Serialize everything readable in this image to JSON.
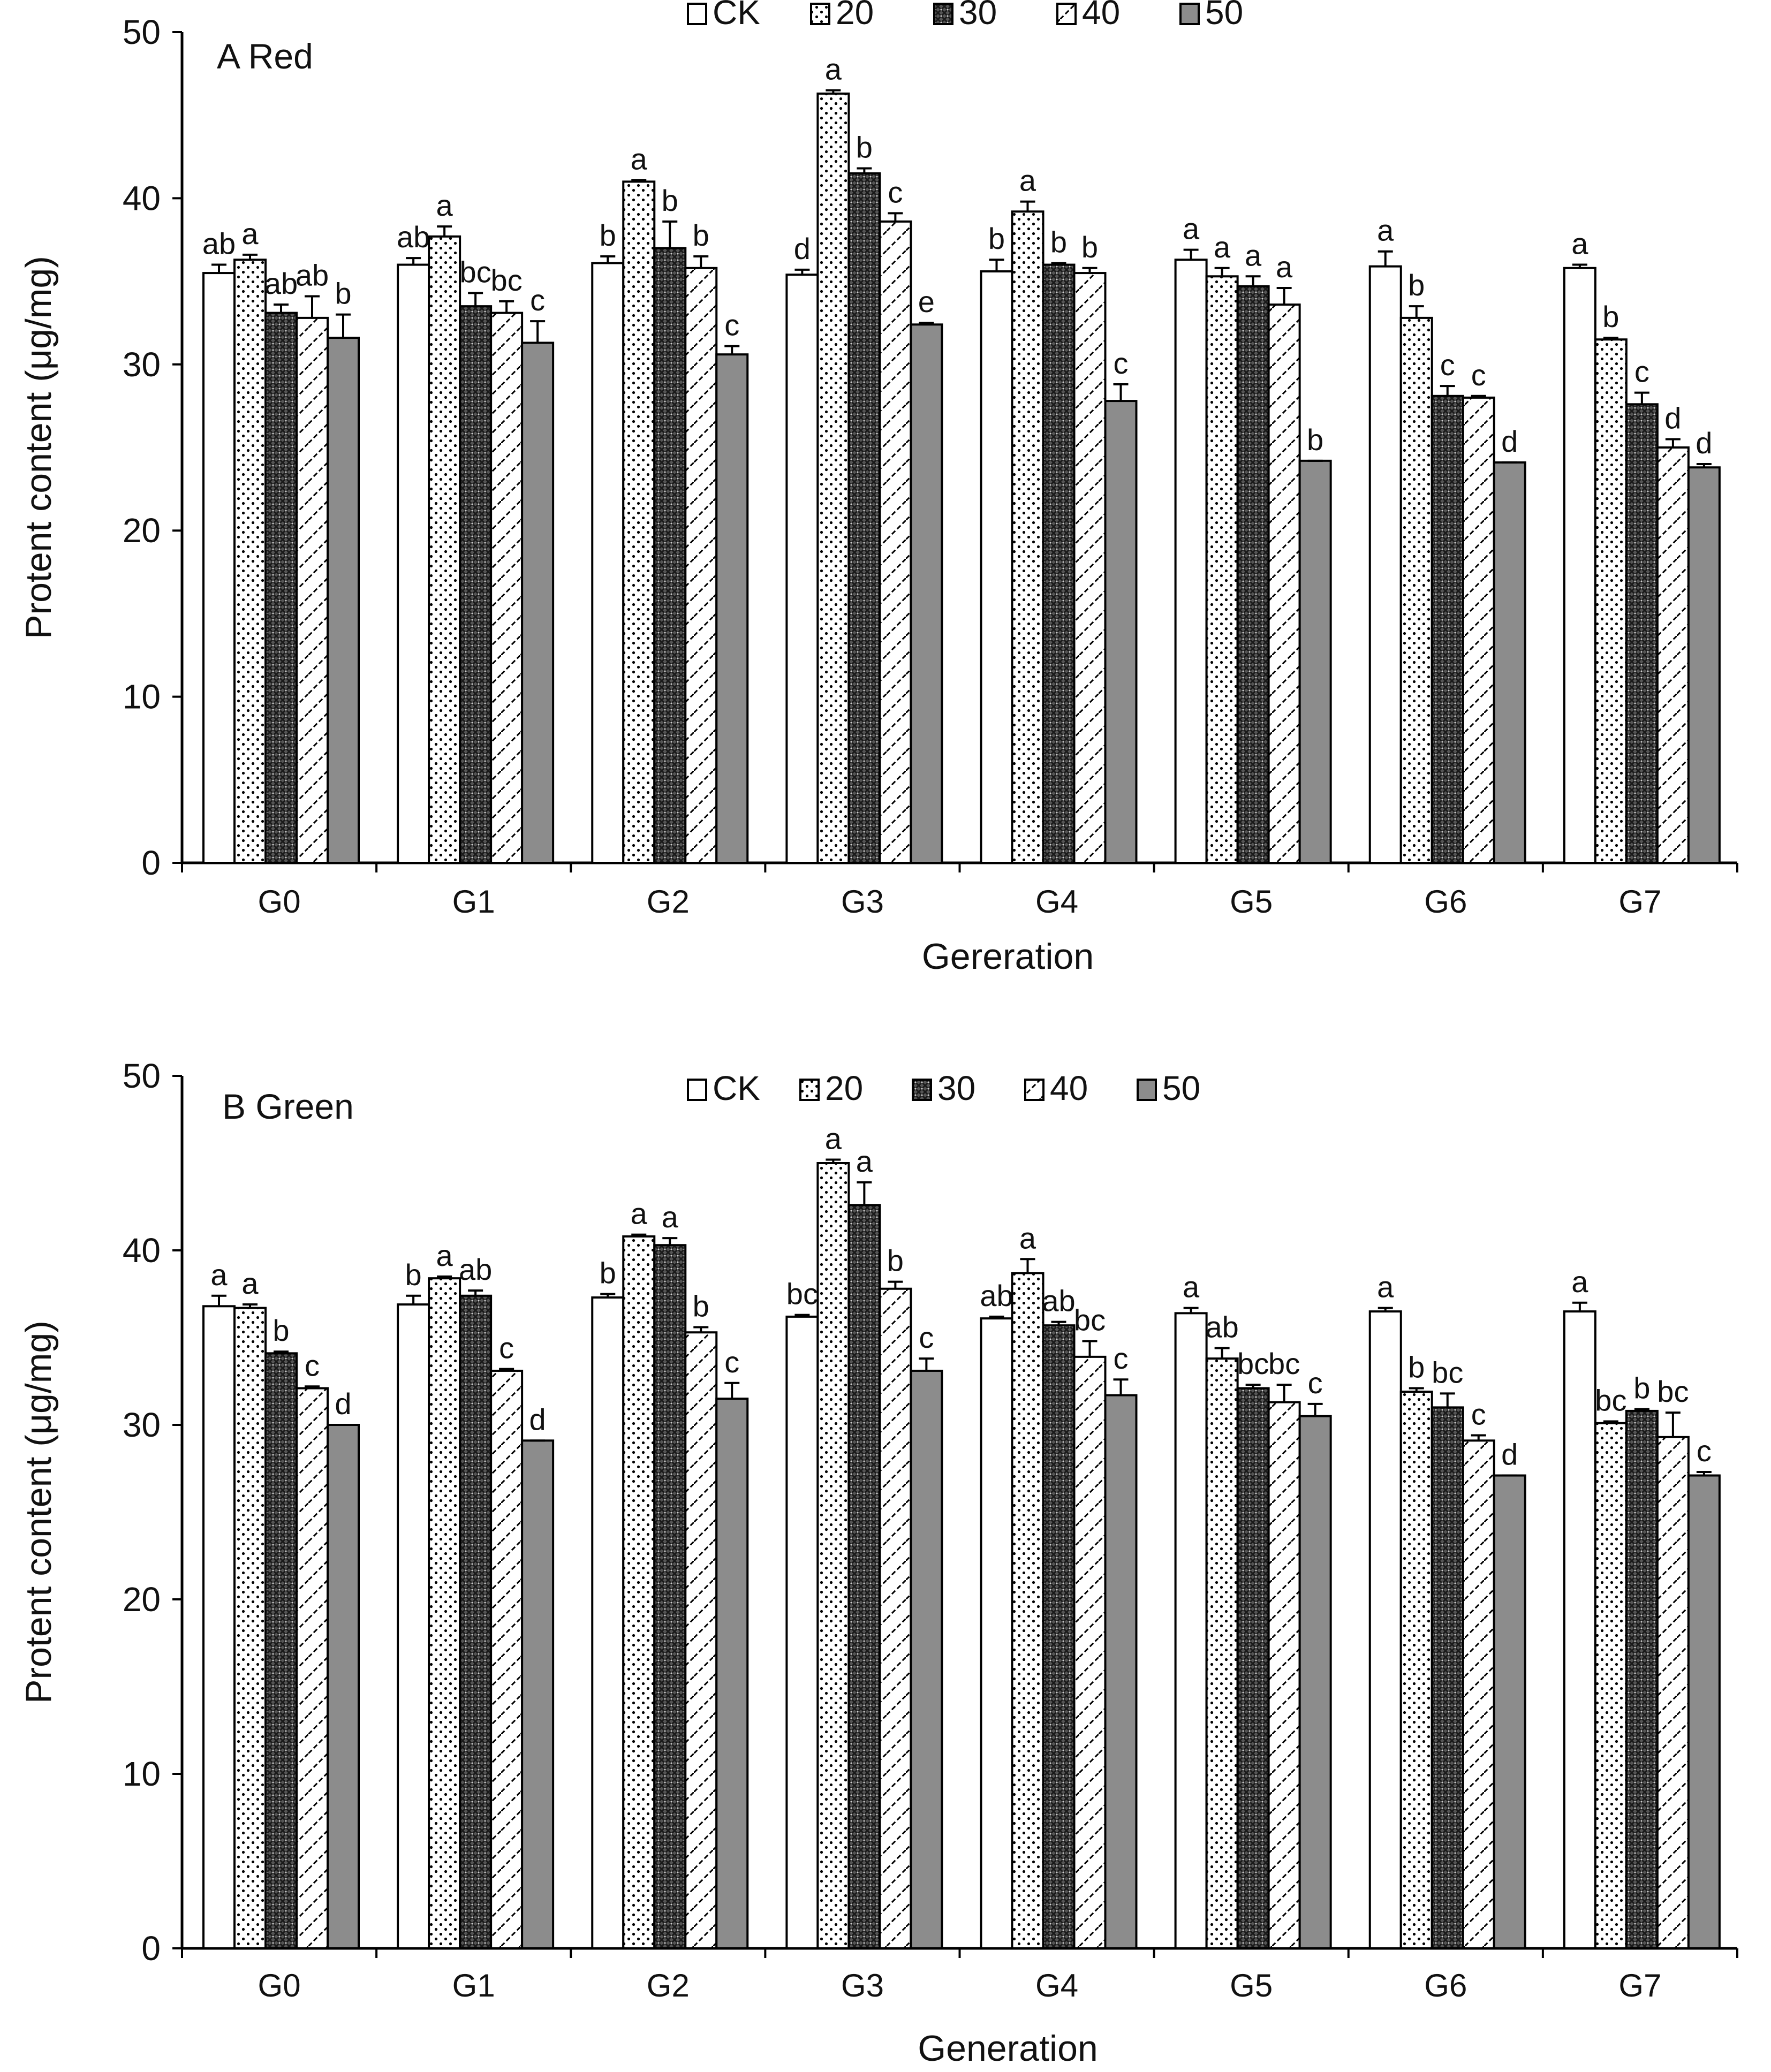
{
  "chart_data": [
    {
      "type": "bar",
      "panel_label": "A Red",
      "xlabel": "Gereration",
      "ylabel": "Protent content (μg/mg)",
      "ylim": [
        0,
        50
      ],
      "yticks": [
        0,
        10,
        20,
        30,
        40,
        50
      ],
      "categories": [
        "G0",
        "G1",
        "G2",
        "G3",
        "G4",
        "G5",
        "G6",
        "G7"
      ],
      "legend_position": "top-center",
      "series": [
        {
          "name": "CK",
          "values": [
            35.5,
            36.0,
            36.1,
            35.4,
            35.6,
            36.3,
            35.9,
            35.8
          ],
          "errors": [
            0.5,
            0.4,
            0.4,
            0.3,
            0.7,
            0.6,
            0.9,
            0.2
          ],
          "letters": [
            "ab",
            "ab",
            "b",
            "d",
            "b",
            "a",
            "a",
            "a"
          ]
        },
        {
          "name": "20",
          "values": [
            36.3,
            37.7,
            41.0,
            46.3,
            39.2,
            35.3,
            32.8,
            31.5
          ],
          "errors": [
            0.3,
            0.6,
            0.1,
            0.2,
            0.6,
            0.5,
            0.7,
            0.1
          ],
          "letters": [
            "a",
            "a",
            "a",
            "a",
            "a",
            "a",
            "b",
            "b"
          ]
        },
        {
          "name": "30",
          "values": [
            33.1,
            33.5,
            37.0,
            41.5,
            36.0,
            34.7,
            28.1,
            27.6
          ],
          "errors": [
            0.5,
            0.8,
            1.6,
            0.3,
            0.1,
            0.6,
            0.6,
            0.7
          ],
          "letters": [
            "ab",
            "bc",
            "b",
            "b",
            "b",
            "a",
            "c",
            "c"
          ]
        },
        {
          "name": "40",
          "values": [
            32.8,
            33.1,
            35.8,
            38.6,
            35.5,
            33.6,
            28.0,
            25.0
          ],
          "errors": [
            1.3,
            0.7,
            0.7,
            0.5,
            0.3,
            1.0,
            0.1,
            0.5
          ],
          "letters": [
            "ab",
            "bc",
            "b",
            "c",
            "b",
            "a",
            "c",
            "d"
          ]
        },
        {
          "name": "50",
          "values": [
            31.6,
            31.3,
            30.6,
            32.4,
            27.8,
            24.2,
            24.1,
            23.8
          ],
          "errors": [
            1.4,
            1.3,
            0.5,
            0.1,
            1.0,
            0.0,
            0.0,
            0.2
          ],
          "letters": [
            "b",
            "c",
            "c",
            "e",
            "c",
            "b",
            "d",
            "d"
          ]
        }
      ]
    },
    {
      "type": "bar",
      "panel_label": "B Green",
      "xlabel": "Generation",
      "ylabel": "Protent content (μg/mg)",
      "ylim": [
        0,
        50
      ],
      "yticks": [
        0,
        10,
        20,
        30,
        40,
        50
      ],
      "categories": [
        "G0",
        "G1",
        "G2",
        "G3",
        "G4",
        "G5",
        "G6",
        "G7"
      ],
      "legend_position": "top-center",
      "series": [
        {
          "name": "CK",
          "values": [
            36.8,
            36.9,
            37.3,
            36.2,
            36.1,
            36.4,
            36.5,
            36.5
          ],
          "errors": [
            0.6,
            0.5,
            0.2,
            0.1,
            0.1,
            0.3,
            0.2,
            0.5
          ],
          "letters": [
            "a",
            "b",
            "b",
            "bc",
            "ab",
            "a",
            "a",
            "a"
          ]
        },
        {
          "name": "20",
          "values": [
            36.7,
            38.4,
            40.8,
            45.0,
            38.7,
            33.8,
            31.9,
            30.1
          ],
          "errors": [
            0.2,
            0.1,
            0.1,
            0.2,
            0.8,
            0.6,
            0.2,
            0.1
          ],
          "letters": [
            "a",
            "a",
            "a",
            "a",
            "a",
            "ab",
            "b",
            "bc"
          ]
        },
        {
          "name": "30",
          "values": [
            34.1,
            37.4,
            40.3,
            42.6,
            35.7,
            32.1,
            31.0,
            30.8
          ],
          "errors": [
            0.1,
            0.3,
            0.4,
            1.3,
            0.2,
            0.2,
            0.8,
            0.1
          ],
          "letters": [
            "b",
            "ab",
            "a",
            "a",
            "ab",
            "bc",
            "bc",
            "b"
          ]
        },
        {
          "name": "40",
          "values": [
            32.1,
            33.1,
            35.3,
            37.8,
            33.9,
            31.3,
            29.1,
            29.3
          ],
          "errors": [
            0.1,
            0.1,
            0.3,
            0.4,
            0.9,
            1.0,
            0.3,
            1.4
          ],
          "letters": [
            "c",
            "c",
            "b",
            "b",
            "bc",
            "bc",
            "c",
            "bc"
          ]
        },
        {
          "name": "50",
          "values": [
            30.0,
            29.1,
            31.5,
            33.1,
            31.7,
            30.5,
            27.1,
            27.1
          ],
          "errors": [
            0.0,
            0.0,
            0.9,
            0.7,
            0.9,
            0.7,
            0.0,
            0.2
          ],
          "letters": [
            "d",
            "d",
            "c",
            "c",
            "c",
            "c",
            "d",
            "c"
          ]
        }
      ]
    }
  ]
}
